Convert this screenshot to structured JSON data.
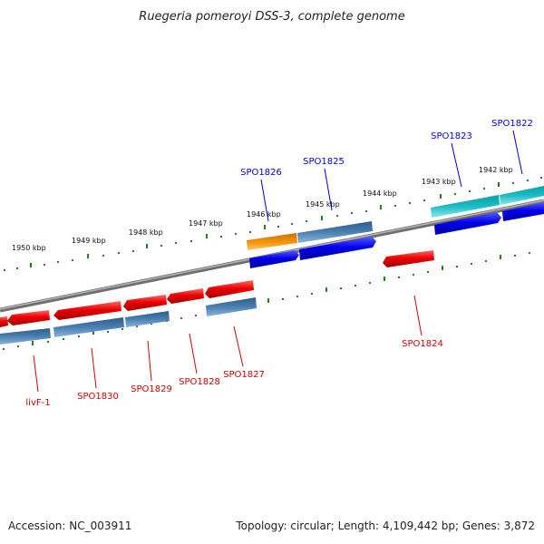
{
  "title": "Ruegeria pomeroyi DSS-3, complete genome",
  "kbp_labels": [
    "1950 kbp",
    "1949 kbp",
    "1948 kbp",
    "1947 kbp",
    "1946 kbp",
    "1945 kbp",
    "1944 kbp",
    "1943 kbp",
    "1942 kbp"
  ],
  "genes_top": [
    "SPO1826",
    "SPO1825",
    "SPO1823",
    "SPO1822"
  ],
  "genes_bottom": [
    "livF-1",
    "SPO1830",
    "SPO1829",
    "SPO1828",
    "SPO1827",
    "SPO1824"
  ],
  "footer": {
    "accession": "Accession: NC_003911",
    "stats": "Topology: circular; Length: 4,109,442 bp; Genes: 3,872"
  },
  "colors": {
    "forward_gene": "#0000ee",
    "reverse_gene": "#ee0000",
    "track_blue": "#4a7fb3",
    "track_cyan": "#1bbcc4",
    "track_orange": "#f39200",
    "tick": "#2a7a2a",
    "backbone": "#8a8a8a",
    "top_label": "#0000cc",
    "bottom_label": "#cc0000"
  }
}
